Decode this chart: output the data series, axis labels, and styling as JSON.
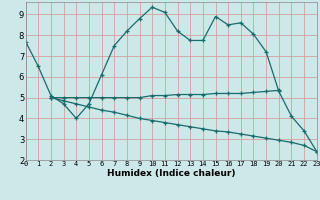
{
  "xlabel": "Humidex (Indice chaleur)",
  "bg_color": "#cce8e8",
  "grid_color": "#d4a0a0",
  "line_color": "#1a6b6b",
  "curve1_x": [
    0,
    1,
    2,
    3,
    4,
    5,
    6,
    7,
    8,
    9,
    10,
    11,
    12,
    13,
    14,
    15,
    16,
    17,
    18,
    19,
    20,
    21,
    22,
    23
  ],
  "curve1_y": [
    7.7,
    6.5,
    5.1,
    4.7,
    4.0,
    4.7,
    6.1,
    7.5,
    8.2,
    8.8,
    9.35,
    9.1,
    8.2,
    7.75,
    7.75,
    8.9,
    8.5,
    8.6,
    8.05,
    7.2,
    5.3,
    4.1,
    3.4,
    2.4
  ],
  "curve2_x": [
    2,
    3,
    4,
    5,
    6,
    7,
    8,
    9,
    10,
    11,
    12,
    13,
    14,
    15,
    16,
    17,
    18,
    19,
    20
  ],
  "curve2_y": [
    5.0,
    5.0,
    5.0,
    5.0,
    5.0,
    5.0,
    5.0,
    5.0,
    5.1,
    5.1,
    5.15,
    5.15,
    5.15,
    5.2,
    5.2,
    5.2,
    5.25,
    5.3,
    5.35
  ],
  "curve3_x": [
    2,
    3,
    4,
    5,
    6,
    7,
    8,
    9,
    10,
    11,
    12,
    13,
    14,
    15,
    16,
    17,
    18,
    19,
    20,
    21,
    22,
    23
  ],
  "curve3_y": [
    5.0,
    4.85,
    4.7,
    4.55,
    4.4,
    4.3,
    4.15,
    4.0,
    3.9,
    3.8,
    3.7,
    3.6,
    3.5,
    3.4,
    3.35,
    3.25,
    3.15,
    3.05,
    2.95,
    2.85,
    2.7,
    2.4
  ],
  "xlim": [
    0,
    23
  ],
  "ylim": [
    2,
    9.6
  ],
  "yticks": [
    2,
    3,
    4,
    5,
    6,
    7,
    8,
    9
  ],
  "xticks": [
    0,
    1,
    2,
    3,
    4,
    5,
    6,
    7,
    8,
    9,
    10,
    11,
    12,
    13,
    14,
    15,
    16,
    17,
    18,
    19,
    20,
    21,
    22,
    23
  ]
}
